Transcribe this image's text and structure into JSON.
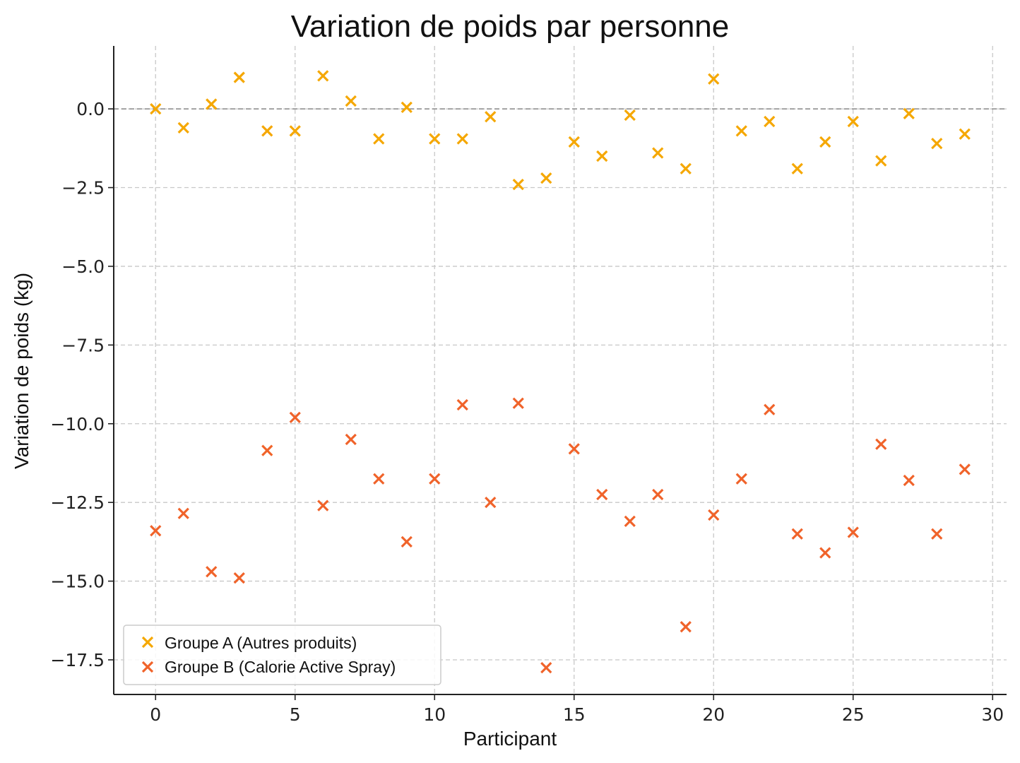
{
  "chart_data": {
    "type": "scatter",
    "title": "Variation de poids par personne",
    "xlabel": "Participant",
    "ylabel": "Variation de poids (kg)",
    "xlim": [
      -1.5,
      30.5
    ],
    "ylim": [
      -18.6,
      2.0
    ],
    "x_ticks": [
      0,
      5,
      10,
      15,
      20,
      25,
      30
    ],
    "x_tick_labels": [
      "0",
      "5",
      "10",
      "15",
      "20",
      "25",
      "30"
    ],
    "y_ticks": [
      0.0,
      -2.5,
      -5.0,
      -7.5,
      -10.0,
      -12.5,
      -15.0,
      -17.5
    ],
    "y_tick_labels": [
      "0.0",
      "−2.5",
      "−5.0",
      "−7.5",
      "−10.0",
      "−12.5",
      "−15.0",
      "−17.5"
    ],
    "grid": true,
    "reference_line_y": 0,
    "legend_position": "bottom-left",
    "x": [
      0,
      1,
      2,
      3,
      4,
      5,
      6,
      7,
      8,
      9,
      10,
      11,
      12,
      13,
      14,
      15,
      16,
      17,
      18,
      19,
      20,
      21,
      22,
      23,
      24,
      25,
      26,
      27,
      28,
      29
    ],
    "series": [
      {
        "name": "Groupe A (Autres produits)",
        "color": "#f5a700",
        "marker": "x",
        "values": [
          0.0,
          -0.6,
          0.15,
          1.0,
          -0.7,
          -0.7,
          1.05,
          0.25,
          -0.95,
          0.05,
          -0.95,
          -0.95,
          -0.25,
          -2.4,
          -2.2,
          -1.05,
          -1.5,
          -0.2,
          -1.4,
          -1.9,
          0.95,
          -0.7,
          -0.4,
          -1.9,
          -1.05,
          -0.4,
          -1.65,
          -0.15,
          -1.1,
          -0.8
        ]
      },
      {
        "name": "Groupe B (Calorie Active Spray)",
        "color": "#f0632a",
        "marker": "x",
        "values": [
          -13.4,
          -12.85,
          -14.7,
          -14.9,
          -10.85,
          -9.8,
          -12.6,
          -10.5,
          -11.75,
          -13.75,
          -11.75,
          -9.4,
          -12.5,
          -9.35,
          -17.75,
          -10.8,
          -12.25,
          -13.1,
          -12.25,
          -16.45,
          -12.9,
          -11.75,
          -9.55,
          -13.5,
          -14.1,
          -13.45,
          -10.65,
          -11.8,
          -13.5,
          -11.45
        ]
      }
    ]
  }
}
